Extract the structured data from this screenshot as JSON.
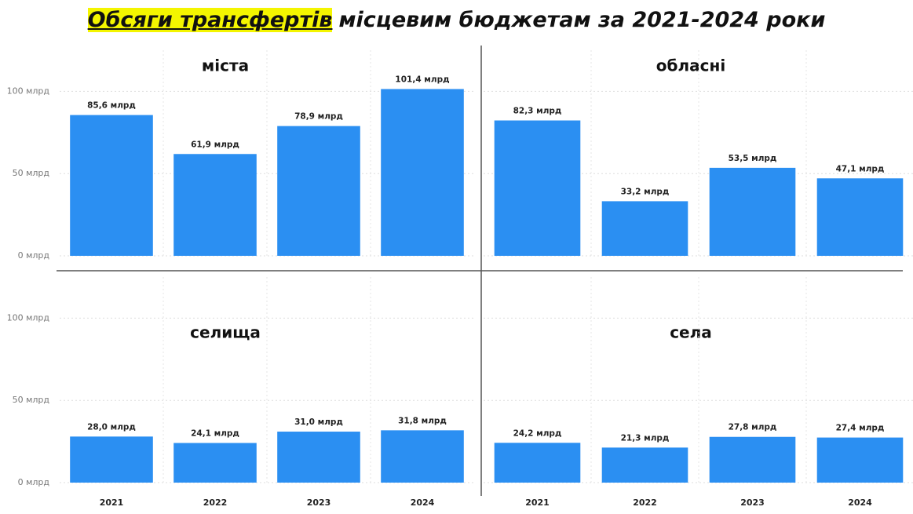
{
  "title": {
    "highlighted": "Обсяги трансфертів",
    "rest": "місцевим бюджетам за 2021-2024 роки"
  },
  "chart_data": [
    {
      "type": "bar",
      "title": "міста",
      "categories": [
        null,
        null,
        null,
        null
      ],
      "values": [
        85.6,
        61.9,
        78.9,
        101.4
      ],
      "value_labels": [
        "85,6 млрд",
        "61,9 млрд",
        "78,9 млрд",
        "101,4 млрд"
      ],
      "color": "#2b8ff2",
      "ylim": [
        0,
        125
      ],
      "yticks": [
        {
          "value": 0,
          "label": "0 млрд"
        },
        {
          "value": 50,
          "label": "50 млрд"
        },
        {
          "value": 100,
          "label": "100 млрд"
        }
      ],
      "grid": true
    },
    {
      "type": "bar",
      "title": "обласні",
      "categories": [
        null,
        null,
        null,
        null
      ],
      "values": [
        82.3,
        33.2,
        53.5,
        47.1
      ],
      "value_labels": [
        "82,3 млрд",
        "33,2 млрд",
        "53,5 млрд",
        "47,1 млрд"
      ],
      "color": "#2b8ff2",
      "ylim": [
        0,
        125
      ],
      "yticks": [
        {
          "value": 0
        },
        {
          "value": 50
        },
        {
          "value": 100
        }
      ],
      "grid": true
    },
    {
      "type": "bar",
      "title": "селища",
      "categories": [
        "2021",
        "2022",
        "2023",
        "2024"
      ],
      "values": [
        28.0,
        24.1,
        31.0,
        31.8
      ],
      "value_labels": [
        "28,0 млрд",
        "24,1 млрд",
        "31,0 млрд",
        "31,8 млрд"
      ],
      "color": "#2b8ff2",
      "ylim": [
        0,
        125
      ],
      "yticks": [
        {
          "value": 0,
          "label": "0 млрд"
        },
        {
          "value": 50,
          "label": "50 млрд"
        },
        {
          "value": 100,
          "label": "100 млрд"
        }
      ],
      "grid": true
    },
    {
      "type": "bar",
      "title": "села",
      "categories": [
        "2021",
        "2022",
        "2023",
        "2024"
      ],
      "values": [
        24.2,
        21.3,
        27.8,
        27.4
      ],
      "value_labels": [
        "24,2 млрд",
        "21,3 млрд",
        "27,8 млрд",
        "27,4 млрд"
      ],
      "color": "#2b8ff2",
      "ylim": [
        0,
        125
      ],
      "yticks": [
        {
          "value": 0
        },
        {
          "value": 50
        },
        {
          "value": 100
        }
      ],
      "grid": true
    }
  ]
}
